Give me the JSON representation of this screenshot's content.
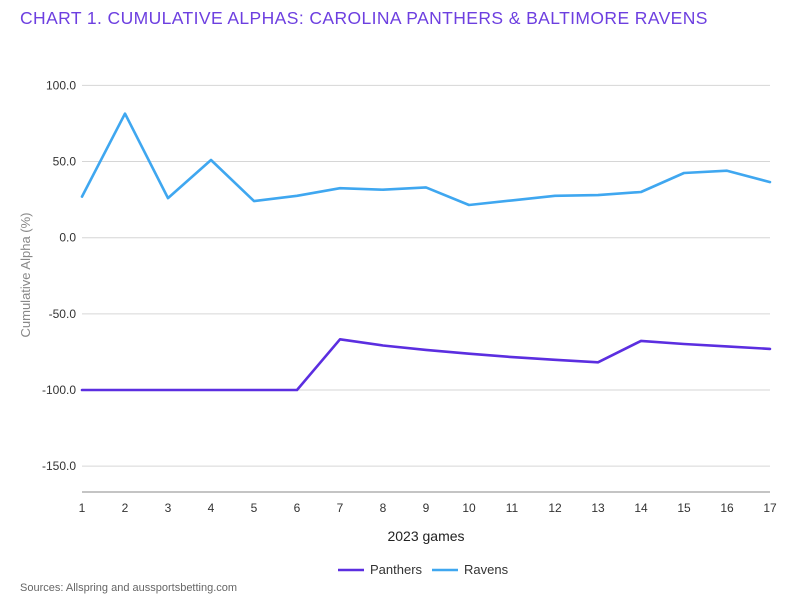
{
  "title": "CHART 1. CUMULATIVE ALPHAS: CAROLINA PANTHERS & BALTIMORE RAVENS",
  "source": "Sources: Allspring and aussportsbetting.com",
  "chart_data": {
    "type": "line",
    "x": [
      1,
      2,
      3,
      4,
      5,
      6,
      7,
      8,
      9,
      10,
      11,
      12,
      13,
      14,
      15,
      16,
      17
    ],
    "series": [
      {
        "name": "Panthers",
        "color": "#5b2ee0",
        "values": [
          -100.0,
          -100.0,
          -100.0,
          -100.0,
          -100.0,
          -100.0,
          -66.7,
          -70.8,
          -73.7,
          -76.2,
          -78.4,
          -80.2,
          -81.8,
          -67.8,
          -69.8,
          -71.4,
          -73.0
        ]
      },
      {
        "name": "Ravens",
        "color": "#3fa7f0",
        "values": [
          27.0,
          81.5,
          26.0,
          51.0,
          24.0,
          27.5,
          32.5,
          31.5,
          33.0,
          21.5,
          24.5,
          27.5,
          28.0,
          30.0,
          42.5,
          44.0,
          36.5
        ]
      }
    ],
    "xlabel": "2023 games",
    "ylabel": "Cumulative Alpha (%)",
    "xticks": [
      "1",
      "2",
      "3",
      "4",
      "5",
      "6",
      "7",
      "8",
      "9",
      "10",
      "11",
      "12",
      "13",
      "14",
      "15",
      "16",
      "17"
    ],
    "yticks": [
      "100.0",
      "50.0",
      "0.0",
      "-50.0",
      "-100.0",
      "-150.0"
    ],
    "ylim": [
      -167,
      118
    ],
    "xlim": [
      1,
      17
    ],
    "grid": "horizontal",
    "legend": "bottom-center"
  }
}
